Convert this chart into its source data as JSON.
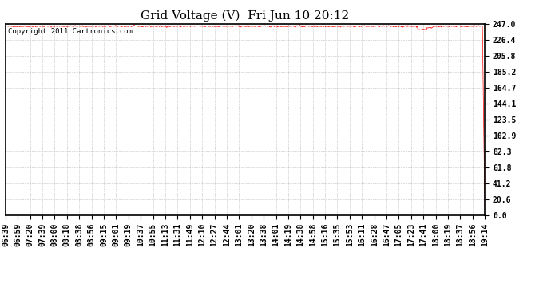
{
  "title": "Grid Voltage (V)  Fri Jun 10 20:12",
  "copyright_text": "Copyright 2011 Cartronics.com",
  "line_color": "#ff0000",
  "background_color": "#ffffff",
  "plot_bg_color": "#ffffff",
  "grid_color": "#aaaaaa",
  "border_color": "#000000",
  "ytick_labels": [
    0.0,
    20.6,
    41.2,
    61.8,
    82.3,
    102.9,
    123.5,
    144.1,
    164.7,
    185.2,
    205.8,
    226.4,
    247.0
  ],
  "ymin": 0.0,
  "ymax": 247.0,
  "voltage_mean": 244.0,
  "voltage_noise": 0.5,
  "xtick_labels": [
    "06:39",
    "06:59",
    "07:20",
    "07:39",
    "08:00",
    "08:18",
    "08:38",
    "08:56",
    "09:15",
    "09:01",
    "09:19",
    "10:37",
    "10:55",
    "11:13",
    "11:31",
    "11:49",
    "12:10",
    "12:27",
    "12:44",
    "13:01",
    "13:20",
    "13:38",
    "14:01",
    "14:19",
    "14:38",
    "14:58",
    "15:16",
    "15:35",
    "15:53",
    "16:11",
    "16:28",
    "16:47",
    "17:05",
    "17:23",
    "17:41",
    "18:00",
    "18:19",
    "18:37",
    "18:56",
    "19:14"
  ],
  "title_fontsize": 11,
  "tick_fontsize": 7,
  "copyright_fontsize": 6.5
}
